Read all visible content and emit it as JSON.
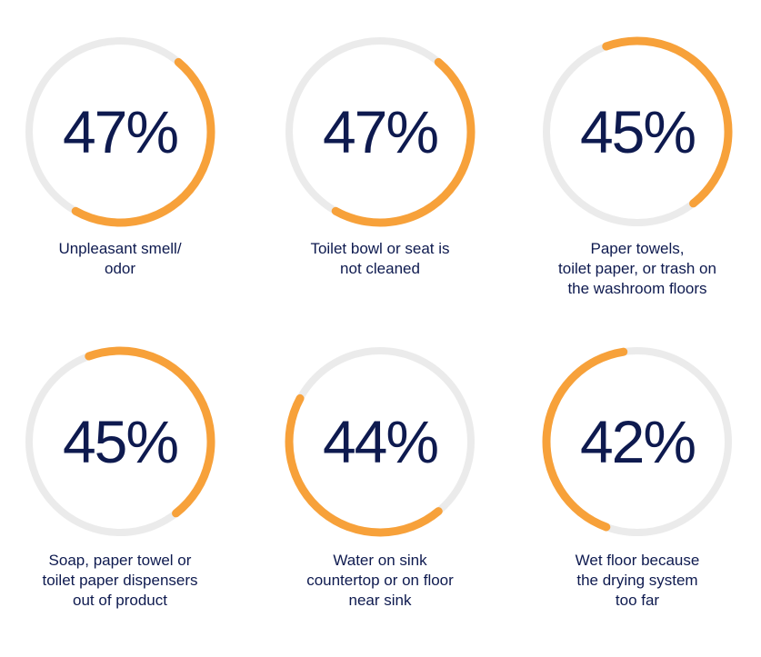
{
  "colors": {
    "accent": "#F7A13A",
    "track": "#EBEBEB",
    "text": "#0E1A4F"
  },
  "chart_data": [
    {
      "type": "donut",
      "value": 47,
      "value_label": "47%",
      "arc_start_clock_deg": 40,
      "category_lines": [
        "Unpleasant smell/",
        "odor"
      ]
    },
    {
      "type": "donut",
      "value": 47,
      "value_label": "47%",
      "arc_start_clock_deg": 40,
      "category_lines": [
        "Toilet bowl or seat is",
        "not cleaned"
      ]
    },
    {
      "type": "donut",
      "value": 45,
      "value_label": "45%",
      "arc_start_clock_deg": 340,
      "category_lines": [
        "Paper towels,",
        "toilet paper, or trash on",
        "the washroom floors"
      ]
    },
    {
      "type": "donut",
      "value": 45,
      "value_label": "45%",
      "arc_start_clock_deg": 340,
      "category_lines": [
        "Soap, paper towel or",
        "toilet paper dispensers",
        "out of product"
      ]
    },
    {
      "type": "donut",
      "value": 44,
      "value_label": "44%",
      "arc_start_clock_deg": 140,
      "category_lines": [
        "Water on sink",
        "countertop or on floor",
        "near sink"
      ]
    },
    {
      "type": "donut",
      "value": 42,
      "value_label": "42%",
      "arc_start_clock_deg": 200,
      "category_lines": [
        "Wet floor because",
        "the drying system",
        "too far"
      ]
    }
  ]
}
